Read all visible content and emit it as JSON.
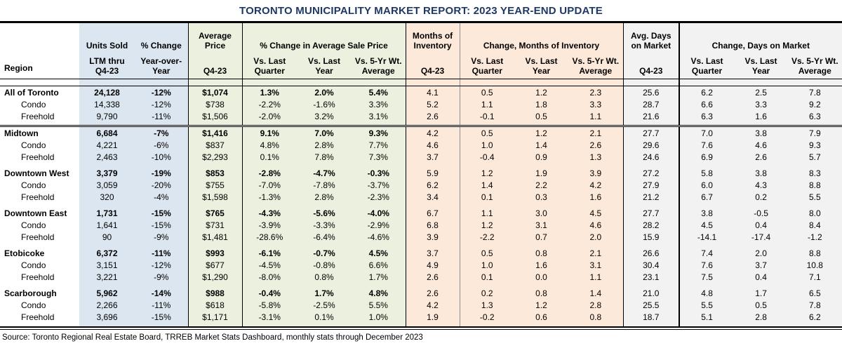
{
  "title": "TORONTO MUNICIPALITY MARKET REPORT: 2023 YEAR-END UPDATE",
  "source": "Source: Toronto Regional Real Estate Board, TRREB Market Stats Dashboard, monthly stats through December 2023",
  "colors": {
    "title_navy": "#1F3864",
    "band_blue": "#DCE6F1",
    "band_green": "#EBF1DE",
    "band_orange": "#FDE9D9",
    "band_gray": "#F2F2F2"
  },
  "header": {
    "region": "Region",
    "units_sold": {
      "top": "Units Sold",
      "sub": "LTM thru\nQ4-23"
    },
    "pct_change": {
      "top": "% Change",
      "sub": "Year-over-\nYear"
    },
    "avg_price": {
      "top": "Average\nPrice",
      "sub": "Q4-23"
    },
    "price_change_group": "% Change in Average Sale Price",
    "months_inventory": {
      "top": "Months of\nInventory",
      "sub": "Q4-23"
    },
    "moi_change_group": "Change, Months of Inventory",
    "days_on_market": {
      "top": "Avg. Days\non Market",
      "sub": "Q4-23"
    },
    "dom_change_group": "Change, Days on Market",
    "vs_subs": [
      "Vs. Last\nQuarter",
      "Vs. Last\nYear",
      "Vs. 5-Yr Wt.\nAverage"
    ]
  },
  "sections": [
    {
      "rows": [
        {
          "region": "All of Toronto",
          "values": [
            "24,128",
            "-12%",
            "$1,074",
            "1.3%",
            "2.0%",
            "5.4%",
            "4.1",
            "0.5",
            "1.2",
            "2.3",
            "25.6",
            "6.2",
            "2.5",
            "7.8"
          ]
        },
        {
          "region": "Condo",
          "values": [
            "14,338",
            "-12%",
            "$738",
            "-2.2%",
            "-1.6%",
            "3.3%",
            "5.2",
            "1.1",
            "1.8",
            "3.3",
            "28.7",
            "6.6",
            "3.3",
            "9.2"
          ]
        },
        {
          "region": "Freehold",
          "values": [
            "9,790",
            "-11%",
            "$1,506",
            "-2.0%",
            "3.2%",
            "3.1%",
            "2.6",
            "-0.1",
            "0.5",
            "1.1",
            "21.6",
            "6.3",
            "1.6",
            "6.3"
          ]
        }
      ]
    },
    {
      "rows": [
        {
          "region": "Midtown",
          "values": [
            "6,684",
            "-7%",
            "$1,416",
            "9.1%",
            "7.0%",
            "9.3%",
            "4.2",
            "0.5",
            "1.2",
            "2.1",
            "27.7",
            "7.0",
            "3.8",
            "7.9"
          ]
        },
        {
          "region": "Condo",
          "values": [
            "4,221",
            "-6%",
            "$837",
            "4.8%",
            "2.8%",
            "7.7%",
            "4.6",
            "1.0",
            "1.4",
            "2.6",
            "29.6",
            "7.6",
            "4.6",
            "9.3"
          ]
        },
        {
          "region": "Freehold",
          "values": [
            "2,463",
            "-10%",
            "$2,293",
            "0.1%",
            "7.8%",
            "7.3%",
            "3.7",
            "-0.4",
            "0.9",
            "1.3",
            "24.6",
            "6.9",
            "2.6",
            "5.7"
          ]
        }
      ]
    },
    {
      "rows": [
        {
          "region": "Downtown West",
          "values": [
            "3,379",
            "-19%",
            "$853",
            "-2.8%",
            "-4.7%",
            "-0.3%",
            "5.9",
            "1.2",
            "1.9",
            "3.9",
            "27.2",
            "5.8",
            "3.8",
            "8.3"
          ]
        },
        {
          "region": "Condo",
          "values": [
            "3,059",
            "-20%",
            "$755",
            "-7.0%",
            "-7.8%",
            "-3.7%",
            "6.2",
            "1.4",
            "2.2",
            "4.2",
            "27.9",
            "6.0",
            "4.3",
            "8.8"
          ]
        },
        {
          "region": "Freehold",
          "values": [
            "320",
            "-4%",
            "$1,598",
            "-1.3%",
            "2.8%",
            "-2.3%",
            "3.4",
            "0.1",
            "0.3",
            "1.6",
            "21.2",
            "6.7",
            "0.2",
            "5.5"
          ]
        }
      ]
    },
    {
      "rows": [
        {
          "region": "Downtown East",
          "values": [
            "1,731",
            "-15%",
            "$765",
            "-4.3%",
            "-5.6%",
            "-4.0%",
            "6.7",
            "1.1",
            "3.0",
            "4.5",
            "27.7",
            "3.8",
            "-0.5",
            "8.0"
          ]
        },
        {
          "region": "Condo",
          "values": [
            "1,641",
            "-15%",
            "$731",
            "-3.9%",
            "-3.3%",
            "-2.9%",
            "6.8",
            "1.2",
            "3.1",
            "4.6",
            "28.2",
            "4.5",
            "0.4",
            "8.4"
          ]
        },
        {
          "region": "Freehold",
          "values": [
            "90",
            "-9%",
            "$1,481",
            "-28.6%",
            "-6.4%",
            "-4.6%",
            "3.9",
            "-2.2",
            "0.7",
            "2.0",
            "15.9",
            "-14.1",
            "-17.4",
            "-1.2"
          ]
        }
      ]
    },
    {
      "rows": [
        {
          "region": "Etobicoke",
          "values": [
            "6,372",
            "-11%",
            "$993",
            "-6.1%",
            "-0.7%",
            "4.5%",
            "3.7",
            "0.5",
            "0.8",
            "2.1",
            "26.6",
            "7.4",
            "2.0",
            "8.8"
          ]
        },
        {
          "region": "Condo",
          "values": [
            "3,151",
            "-12%",
            "$677",
            "-4.5%",
            "-0.8%",
            "6.6%",
            "4.9",
            "1.0",
            "1.6",
            "3.1",
            "30.4",
            "7.6",
            "3.7",
            "10.8"
          ]
        },
        {
          "region": "Freehold",
          "values": [
            "3,221",
            "-9%",
            "$1,290",
            "-8.0%",
            "0.8%",
            "1.7%",
            "2.6",
            "0.1",
            "0.0",
            "1.1",
            "23.1",
            "7.5",
            "0.4",
            "7.1"
          ]
        }
      ]
    },
    {
      "rows": [
        {
          "region": "Scarborough",
          "values": [
            "5,962",
            "-14%",
            "$988",
            "-0.4%",
            "1.7%",
            "4.8%",
            "2.6",
            "0.2",
            "0.8",
            "1.4",
            "21.0",
            "4.8",
            "1.7",
            "6.5"
          ]
        },
        {
          "region": "Condo",
          "values": [
            "2,266",
            "-11%",
            "$618",
            "-5.8%",
            "-2.5%",
            "5.5%",
            "4.2",
            "1.3",
            "1.2",
            "2.8",
            "25.5",
            "5.5",
            "0.5",
            "7.8"
          ]
        },
        {
          "region": "Freehold",
          "values": [
            "3,696",
            "-15%",
            "$1,171",
            "-3.1%",
            "0.1%",
            "1.0%",
            "1.9",
            "-0.2",
            "0.6",
            "0.8",
            "18.7",
            "5.1",
            "2.8",
            "6.2"
          ]
        }
      ]
    }
  ]
}
